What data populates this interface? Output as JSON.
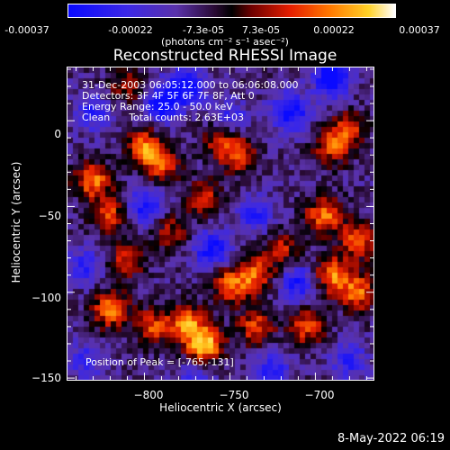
{
  "colors": {
    "background": "#000000",
    "text": "#ffffff"
  },
  "colorbar": {
    "tick_labels": [
      "-0.00037",
      "-0.00022",
      "-7.3e-05",
      "7.3e-05",
      "0.00022",
      "0.00037"
    ],
    "units": "(photons cm⁻² s⁻¹ asec⁻²)"
  },
  "annotations": {
    "time_range": "31-Dec-2003 06:05:12.000 to 06:06:08.000",
    "detectors": "Detectors: 3F 4F 5F 6F 7F 8F, Att 0",
    "energy": "Energy Range: 25.0 - 50.0 keV",
    "method": "Clean      Total counts: 2.63E+03",
    "peak": "Position of Peak = [-765,-131]"
  },
  "footer": {
    "date": "8-May-2022 06:19"
  },
  "chart_data": {
    "type": "heatmap",
    "title": "Reconstructed RHESSI Image",
    "xlabel": "Heliocentric X (arcsec)",
    "ylabel": "Heliocentric Y (arcsec)",
    "xlim": [
      -845,
      -666
    ],
    "ylim": [
      -151,
      31
    ],
    "x_ticks": [
      -800,
      -750,
      -700
    ],
    "x_tick_labels": [
      "−800",
      "−750",
      "−700"
    ],
    "y_ticks": [
      0,
      -50,
      -100,
      -150
    ],
    "y_tick_labels": [
      "0",
      "−50",
      "−100",
      "−150"
    ],
    "value_range": [
      -0.00037,
      0.00037
    ],
    "colormap": "RHESSI (blue-purple-black-red-yellow-white)",
    "peak_position": [
      -765,
      -131
    ],
    "hot_regions": [
      {
        "x": -765,
        "y": -131,
        "intensity": 1.0
      },
      {
        "x": -775,
        "y": -118,
        "intensity": 0.75
      },
      {
        "x": -820,
        "y": -110,
        "intensity": 0.75
      },
      {
        "x": -795,
        "y": -120,
        "intensity": 0.6
      },
      {
        "x": -735,
        "y": -120,
        "intensity": 0.6
      },
      {
        "x": -750,
        "y": -95,
        "intensity": 0.7
      },
      {
        "x": -735,
        "y": -90,
        "intensity": 0.65
      },
      {
        "x": -830,
        "y": -35,
        "intensity": 0.75
      },
      {
        "x": -820,
        "y": -55,
        "intensity": 0.6
      },
      {
        "x": -800,
        "y": -15,
        "intensity": 0.7
      },
      {
        "x": -790,
        "y": -25,
        "intensity": 0.65
      },
      {
        "x": -810,
        "y": -80,
        "intensity": 0.55
      },
      {
        "x": -765,
        "y": -45,
        "intensity": 0.5
      },
      {
        "x": -745,
        "y": -20,
        "intensity": 0.6
      },
      {
        "x": -755,
        "y": -10,
        "intensity": 0.55
      },
      {
        "x": -695,
        "y": -55,
        "intensity": 0.75
      },
      {
        "x": -675,
        "y": -70,
        "intensity": 0.7
      },
      {
        "x": -690,
        "y": -90,
        "intensity": 0.75
      },
      {
        "x": -675,
        "y": -100,
        "intensity": 0.7
      },
      {
        "x": -705,
        "y": -120,
        "intensity": 0.6
      },
      {
        "x": -690,
        "y": -15,
        "intensity": 0.6
      },
      {
        "x": -680,
        "y": -5,
        "intensity": 0.5
      },
      {
        "x": -720,
        "y": -75,
        "intensity": 0.5
      },
      {
        "x": -785,
        "y": -65,
        "intensity": 0.45
      },
      {
        "x": -810,
        "y": 20,
        "intensity": 0.45
      }
    ],
    "cold_regions": [
      {
        "x": -790,
        "y": 10,
        "intensity": -0.8
      },
      {
        "x": -775,
        "y": 20,
        "intensity": -0.7
      },
      {
        "x": -715,
        "y": 5,
        "intensity": -0.75
      },
      {
        "x": -690,
        "y": 25,
        "intensity": -0.85
      },
      {
        "x": -750,
        "y": 0,
        "intensity": -0.5
      },
      {
        "x": -800,
        "y": -50,
        "intensity": -0.6
      },
      {
        "x": -760,
        "y": -75,
        "intensity": -0.7
      },
      {
        "x": -735,
        "y": -55,
        "intensity": -0.5
      },
      {
        "x": -710,
        "y": -95,
        "intensity": -0.6
      },
      {
        "x": -835,
        "y": -85,
        "intensity": -0.45
      },
      {
        "x": -830,
        "y": 5,
        "intensity": -0.5
      },
      {
        "x": -725,
        "y": -145,
        "intensity": -0.5
      },
      {
        "x": -680,
        "y": -140,
        "intensity": -0.45
      },
      {
        "x": -835,
        "y": -140,
        "intensity": -0.4
      },
      {
        "x": -770,
        "y": -150,
        "intensity": -0.4
      }
    ]
  }
}
